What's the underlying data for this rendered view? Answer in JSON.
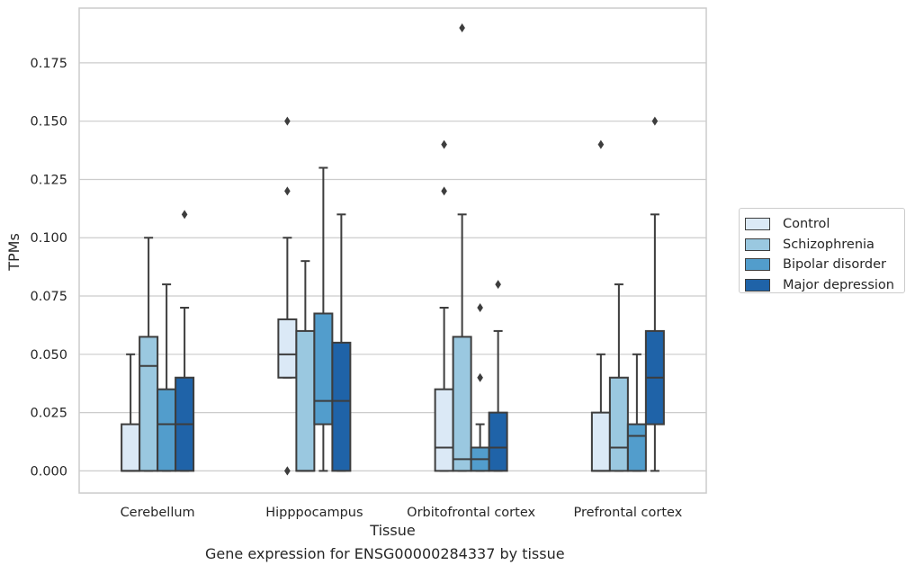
{
  "chart_data": {
    "type": "box",
    "xlabel": "Tissue",
    "ylabel": "TPMs",
    "ylim": [
      -0.0095,
      0.1985
    ],
    "yticks": [
      "0.000",
      "0.025",
      "0.050",
      "0.075",
      "0.100",
      "0.125",
      "0.150",
      "0.175"
    ],
    "grid": true,
    "legend_position": "right",
    "categories": [
      "Cerebellum",
      "Hipppocampus",
      "Orbitofrontal cortex",
      "Prefrontal cortex"
    ],
    "series": [
      {
        "name": "Control",
        "color": "#dbe9f6",
        "boxes": [
          {
            "whisker_low": 0,
            "q1": 0,
            "median": 0,
            "q3": 0.02,
            "whisker_high": 0.05,
            "outliers": []
          },
          {
            "whisker_low": 0.04,
            "q1": 0.04,
            "median": 0.05,
            "q3": 0.065,
            "whisker_high": 0.1,
            "outliers": [
              0,
              0,
              0.12,
              0.15
            ]
          },
          {
            "whisker_low": 0,
            "q1": 0,
            "median": 0.01,
            "q3": 0.035,
            "whisker_high": 0.07,
            "outliers": [
              0.12,
              0.14
            ]
          },
          {
            "whisker_low": 0,
            "q1": 0,
            "median": 0,
            "q3": 0.025,
            "whisker_high": 0.05,
            "outliers": [
              0.14
            ]
          }
        ]
      },
      {
        "name": "Schizophrenia",
        "color": "#9ac8e0",
        "boxes": [
          {
            "whisker_low": 0,
            "q1": 0,
            "median": 0.045,
            "q3": 0.0575,
            "whisker_high": 0.1,
            "outliers": []
          },
          {
            "whisker_low": 0,
            "q1": 0,
            "median": 0,
            "q3": 0.06,
            "whisker_high": 0.09,
            "outliers": []
          },
          {
            "whisker_low": 0,
            "q1": 0,
            "median": 0.005,
            "q3": 0.0575,
            "whisker_high": 0.11,
            "outliers": [
              0.19
            ]
          },
          {
            "whisker_low": 0,
            "q1": 0,
            "median": 0.01,
            "q3": 0.04,
            "whisker_high": 0.08,
            "outliers": []
          }
        ]
      },
      {
        "name": "Bipolar disorder",
        "color": "#529dcc",
        "boxes": [
          {
            "whisker_low": 0,
            "q1": 0,
            "median": 0.02,
            "q3": 0.035,
            "whisker_high": 0.08,
            "outliers": []
          },
          {
            "whisker_low": 0,
            "q1": 0.02,
            "median": 0.03,
            "q3": 0.0675,
            "whisker_high": 0.13,
            "outliers": []
          },
          {
            "whisker_low": 0,
            "q1": 0,
            "median": 0.005,
            "q3": 0.01,
            "whisker_high": 0.02,
            "outliers": [
              0.04,
              0.07
            ]
          },
          {
            "whisker_low": 0,
            "q1": 0,
            "median": 0.015,
            "q3": 0.02,
            "whisker_high": 0.05,
            "outliers": []
          }
        ]
      },
      {
        "name": "Major depression",
        "color": "#1f63a8",
        "boxes": [
          {
            "whisker_low": 0,
            "q1": 0,
            "median": 0.02,
            "q3": 0.04,
            "whisker_high": 0.07,
            "outliers": [
              0.11
            ]
          },
          {
            "whisker_low": 0,
            "q1": 0,
            "median": 0.03,
            "q3": 0.055,
            "whisker_high": 0.11,
            "outliers": []
          },
          {
            "whisker_low": 0,
            "q1": 0,
            "median": 0.01,
            "q3": 0.025,
            "whisker_high": 0.06,
            "outliers": [
              0.08
            ]
          },
          {
            "whisker_low": 0,
            "q1": 0.02,
            "median": 0.04,
            "q3": 0.06,
            "whisker_high": 0.11,
            "outliers": [
              0.15
            ]
          }
        ]
      }
    ]
  },
  "caption": "Gene expression for ENSG00000284337 by tissue"
}
